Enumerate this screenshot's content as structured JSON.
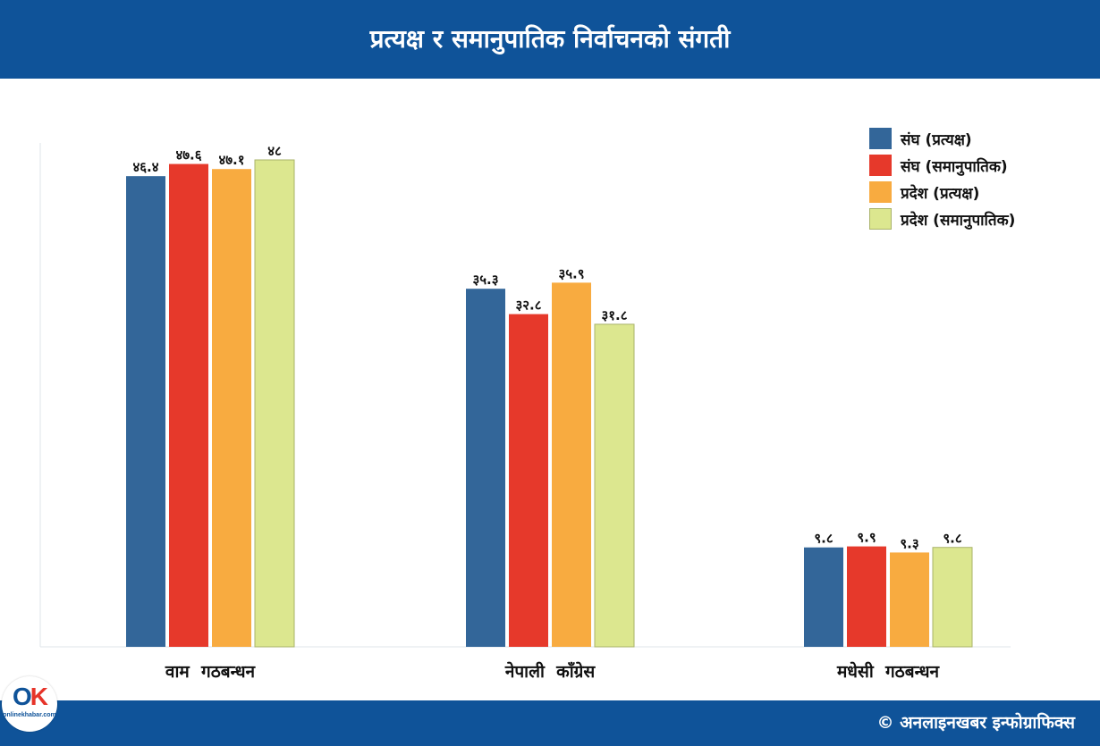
{
  "header": {
    "title": "प्रत्यक्ष र समानुपातिक निर्वाचनको संगती"
  },
  "footer": {
    "credit": "© अनलाइनखबर इन्फोग्राफिक्स",
    "logo_text": "onlinekhabar.com",
    "logo_mark": "OK"
  },
  "colors": {
    "header_bg": "#0f5399",
    "series": [
      "#336699",
      "#e6392b",
      "#f8ab40",
      "#dce78f"
    ]
  },
  "chart_data": {
    "type": "bar",
    "title": "प्रत्यक्ष र समानुपातिक निर्वाचनको संगती",
    "categories": [
      "वाम  गठबन्धन",
      "नेपाली  काँग्रेस",
      "मधेसी  गठबन्धन"
    ],
    "series": [
      {
        "name": "संघ  (प्रत्यक्ष)",
        "values": [
          46.4,
          35.3,
          9.8
        ],
        "labels": [
          "४६.४",
          "३५.३",
          "९.८"
        ]
      },
      {
        "name": "संघ  (समानुपातिक)",
        "values": [
          47.6,
          32.8,
          9.9
        ],
        "labels": [
          "४७.६",
          "३२.८",
          "९.९"
        ]
      },
      {
        "name": "प्रदेश  (प्रत्यक्ष)",
        "values": [
          47.1,
          35.9,
          9.3
        ],
        "labels": [
          "४७.१",
          "३५.९",
          "९.३"
        ]
      },
      {
        "name": "प्रदेश  (समानुपातिक)",
        "values": [
          48,
          31.8,
          9.8
        ],
        "labels": [
          "४८",
          "३१.८",
          "९.८"
        ]
      }
    ],
    "ylim": [
      0,
      48
    ],
    "grid": false,
    "legend": "top-right"
  }
}
